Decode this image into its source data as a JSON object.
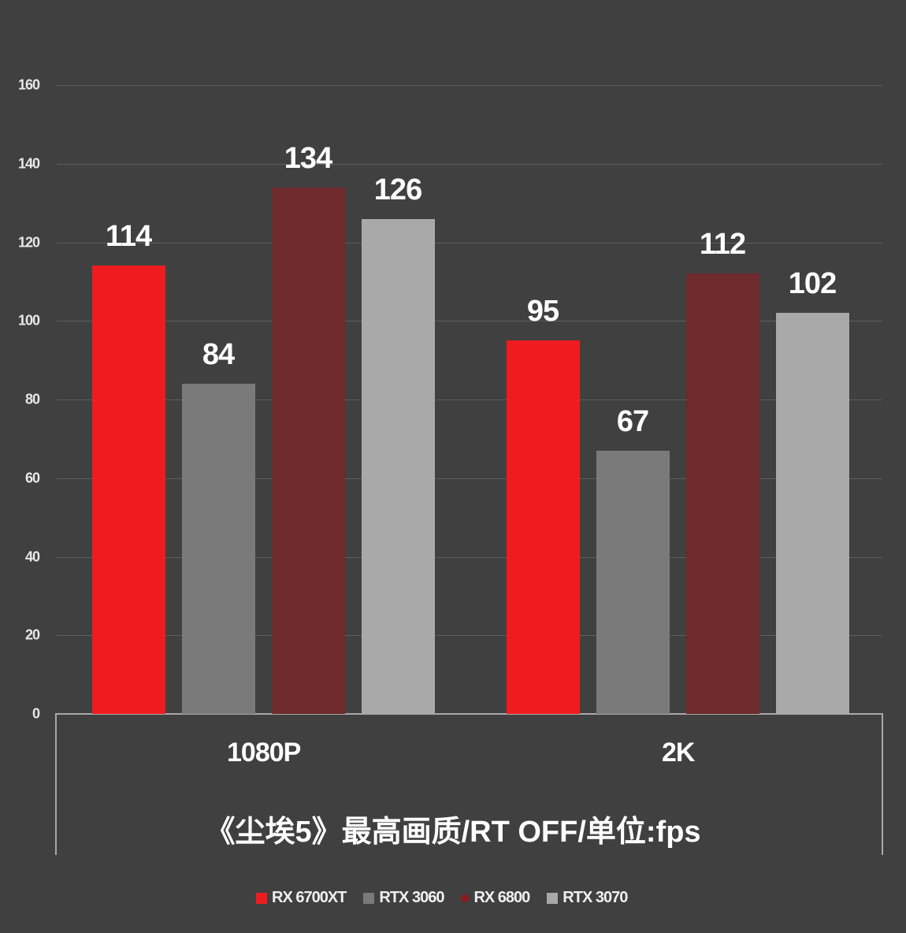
{
  "chart_data": {
    "type": "bar",
    "title": "《尘埃5》最高画质/RT OFF/单位:fps",
    "xlabel": "",
    "ylabel": "",
    "ylim": [
      0,
      160
    ],
    "yticks": [
      "0",
      "20",
      "40",
      "60",
      "80",
      "100",
      "120",
      "140",
      "160"
    ],
    "grid": true,
    "legend_position": "bottom",
    "categories": [
      "1080P",
      "2K"
    ],
    "series": [
      {
        "name": "RX 6700XT",
        "color": "#ee1c1f",
        "values": [
          114,
          95
        ]
      },
      {
        "name": "RTX 3060",
        "color": "#7a7a7a",
        "values": [
          84,
          67
        ]
      },
      {
        "name": "RX 6800",
        "color": "#6e2a2c",
        "values": [
          134,
          112
        ]
      },
      {
        "name": "RTX 3070",
        "color": "#a9a9a9",
        "values": [
          126,
          102
        ]
      }
    ]
  }
}
